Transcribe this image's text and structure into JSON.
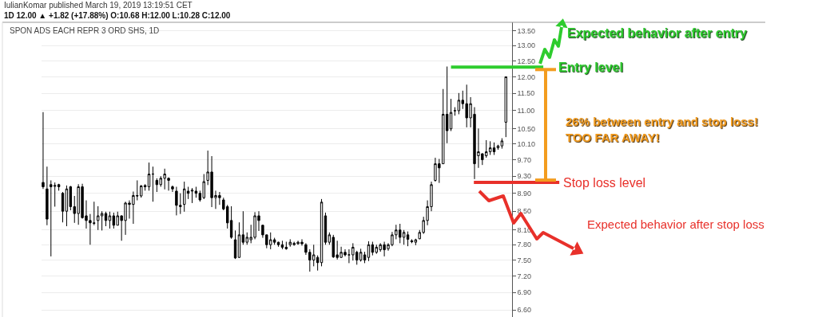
{
  "chart_data": {
    "type": "candlestick",
    "title": "SPON ADS EACH REPR 3 ORD SHS, 1D",
    "annotations": [
      "IulianKomar published March 19, 2019 13:19:51 CET",
      "1D 12.00 ▲ +1.82 (+17.88%) O:10.68 H:12.00 L:10.28 C:12.00",
      "Expected behavior after entry",
      "26% between entry and stop loss!\nTOO FAR AWAY!",
      "Expected behavior after stop loss"
    ],
    "categories": [
      null,
      null,
      null,
      null,
      null,
      null,
      null,
      null,
      null,
      null,
      null,
      null,
      null,
      null,
      null,
      null,
      null,
      null,
      null,
      null,
      null,
      null,
      null,
      null,
      null,
      null,
      null,
      null,
      null,
      null,
      null,
      null,
      null,
      null,
      null,
      null,
      null,
      null,
      null,
      null,
      null,
      null,
      null,
      null,
      null,
      null,
      null,
      null,
      null,
      null,
      null,
      null,
      null,
      null,
      null,
      null,
      null,
      null,
      null,
      null,
      null,
      null,
      null,
      null,
      null,
      null,
      null,
      null,
      null,
      null,
      null,
      null,
      null,
      null,
      null,
      null,
      null,
      null,
      null,
      null,
      null,
      null,
      null,
      null,
      null,
      null,
      null,
      null,
      null,
      null,
      null,
      null,
      null,
      null,
      null,
      null,
      null,
      null,
      null,
      null,
      null,
      null,
      null,
      null,
      null,
      null,
      null,
      null,
      null,
      null,
      null,
      null,
      null,
      null,
      null,
      null,
      null,
      null,
      null
    ],
    "color": "#000000",
    "ohlc": [
      [
        9.15,
        10.96,
        9.0,
        9.05
      ],
      [
        9.0,
        9.53,
        8.2,
        8.33
      ],
      [
        9.1,
        9.2,
        7.57,
        9.05
      ],
      [
        9.06,
        9.15,
        8.6,
        9.08
      ],
      [
        9.1,
        9.12,
        8.96,
        9.05
      ],
      [
        8.9,
        8.93,
        8.26,
        8.5
      ],
      [
        8.5,
        9.08,
        8.18,
        9.0
      ],
      [
        9.05,
        9.07,
        8.52,
        8.6
      ],
      [
        8.6,
        8.84,
        8.25,
        8.45
      ],
      [
        8.45,
        9.11,
        8.21,
        9.05
      ],
      [
        9.05,
        9.12,
        8.34,
        8.36
      ],
      [
        8.4,
        8.74,
        8.13,
        8.3
      ],
      [
        8.3,
        8.44,
        7.8,
        8.25
      ],
      [
        8.25,
        8.71,
        8.2,
        8.24
      ],
      [
        8.3,
        8.61,
        8.1,
        8.4
      ],
      [
        8.4,
        8.5,
        8.09,
        8.45
      ],
      [
        8.45,
        8.49,
        8.18,
        8.3
      ],
      [
        8.3,
        8.49,
        8.13,
        8.4
      ],
      [
        8.4,
        8.47,
        8.13,
        8.2
      ],
      [
        8.2,
        8.49,
        8.2,
        8.4
      ],
      [
        8.4,
        8.41,
        7.88,
        8.3
      ],
      [
        8.3,
        8.71,
        8.0,
        8.68
      ],
      [
        8.68,
        8.74,
        8.34,
        8.65
      ],
      [
        8.65,
        8.94,
        8.23,
        8.85
      ],
      [
        8.85,
        9.2,
        8.74,
        8.84
      ],
      [
        8.84,
        9.09,
        8.8,
        9.07
      ],
      [
        9.08,
        9.11,
        8.96,
        9.05
      ],
      [
        9.05,
        9.63,
        8.96,
        9.35
      ],
      [
        9.35,
        9.53,
        8.71,
        9.35
      ],
      [
        9.2,
        9.25,
        8.93,
        9.1
      ],
      [
        9.1,
        9.3,
        9.05,
        9.25
      ],
      [
        9.25,
        9.48,
        8.99,
        9.35
      ],
      [
        9.25,
        9.27,
        8.96,
        9.2
      ],
      [
        9.05,
        9.08,
        8.93,
        9.0
      ],
      [
        8.95,
        9.05,
        8.41,
        8.63
      ],
      [
        8.6,
        8.9,
        8.44,
        8.63
      ],
      [
        8.65,
        9.17,
        8.49,
        9.0
      ],
      [
        8.95,
        9.05,
        8.77,
        8.9
      ],
      [
        8.95,
        9.02,
        8.68,
        8.97
      ],
      [
        8.95,
        9.05,
        8.8,
        8.9
      ],
      [
        8.9,
        8.96,
        8.71,
        8.75
      ],
      [
        8.8,
        9.35,
        8.77,
        9.17
      ],
      [
        9.2,
        9.93,
        9.09,
        9.4
      ],
      [
        9.4,
        9.79,
        8.59,
        8.8
      ],
      [
        8.8,
        8.96,
        8.55,
        8.85
      ],
      [
        8.85,
        8.93,
        8.64,
        8.8
      ],
      [
        8.75,
        8.8,
        8.52,
        8.55
      ],
      [
        8.6,
        8.64,
        8.13,
        8.25
      ],
      [
        8.3,
        8.61,
        7.92,
        7.95
      ],
      [
        7.9,
        8.09,
        7.52,
        7.54
      ],
      [
        7.55,
        8.26,
        7.54,
        8.0
      ],
      [
        8.0,
        8.5,
        7.8,
        7.85
      ],
      [
        7.85,
        8.05,
        7.8,
        7.95
      ],
      [
        7.9,
        8.21,
        7.83,
        7.95
      ],
      [
        7.95,
        8.48,
        7.91,
        8.4
      ],
      [
        8.4,
        8.5,
        8.08,
        8.3
      ],
      [
        8.2,
        8.21,
        7.94,
        8.0
      ],
      [
        8.0,
        8.0,
        7.73,
        7.8
      ],
      [
        7.8,
        8.05,
        7.71,
        7.9
      ],
      [
        7.9,
        7.94,
        7.8,
        7.85
      ],
      [
        7.85,
        7.86,
        7.76,
        7.8
      ],
      [
        7.8,
        7.88,
        7.71,
        7.75
      ],
      [
        7.75,
        7.86,
        7.7,
        7.72
      ],
      [
        7.8,
        7.91,
        7.76,
        7.85
      ],
      [
        7.8,
        7.86,
        7.78,
        7.83
      ],
      [
        7.82,
        7.88,
        7.8,
        7.85
      ],
      [
        7.85,
        7.91,
        7.78,
        7.82
      ],
      [
        7.8,
        7.83,
        7.6,
        7.65
      ],
      [
        7.65,
        7.71,
        7.28,
        7.5
      ],
      [
        7.5,
        7.8,
        7.38,
        7.6
      ],
      [
        7.55,
        7.59,
        7.3,
        7.45
      ],
      [
        7.45,
        8.77,
        7.38,
        8.7
      ],
      [
        8.4,
        8.47,
        7.8,
        7.85
      ],
      [
        7.85,
        8.05,
        7.8,
        8.0
      ],
      [
        7.95,
        8.0,
        7.54,
        7.56
      ],
      [
        7.6,
        7.88,
        7.51,
        7.55
      ],
      [
        7.55,
        7.76,
        7.54,
        7.65
      ],
      [
        7.65,
        7.71,
        7.57,
        7.6
      ],
      [
        7.6,
        7.71,
        7.44,
        7.6
      ],
      [
        7.6,
        7.83,
        7.49,
        7.75
      ],
      [
        7.65,
        7.68,
        7.41,
        7.5
      ],
      [
        7.5,
        7.72,
        7.47,
        7.65
      ],
      [
        7.6,
        7.66,
        7.44,
        7.5
      ],
      [
        7.55,
        7.87,
        7.48,
        7.8
      ],
      [
        7.8,
        7.86,
        7.59,
        7.65
      ],
      [
        7.65,
        7.8,
        7.62,
        7.75
      ],
      [
        7.7,
        7.83,
        7.66,
        7.8
      ],
      [
        7.8,
        7.86,
        7.57,
        7.7
      ],
      [
        7.72,
        7.83,
        7.68,
        7.8
      ],
      [
        7.8,
        8.06,
        7.77,
        8.0
      ],
      [
        8.0,
        8.21,
        7.91,
        8.1
      ],
      [
        8.1,
        8.23,
        7.83,
        7.95
      ],
      [
        7.95,
        8.1,
        7.8,
        8.05
      ],
      [
        8.0,
        8.07,
        7.77,
        7.91
      ],
      [
        7.88,
        7.91,
        7.83,
        7.86
      ],
      [
        7.85,
        7.92,
        7.79,
        7.9
      ],
      [
        7.92,
        8.1,
        7.91,
        8.05
      ],
      [
        8.05,
        8.38,
        8.02,
        8.3
      ],
      [
        8.3,
        8.74,
        8.2,
        8.6
      ],
      [
        8.6,
        9.17,
        8.5,
        9.1
      ],
      [
        9.2,
        9.75,
        9.17,
        9.6
      ],
      [
        9.6,
        9.72,
        9.14,
        9.5
      ],
      [
        9.6,
        11.63,
        9.6,
        10.9
      ],
      [
        10.9,
        12.32,
        10.12,
        10.45
      ],
      [
        10.5,
        11.34,
        10.44,
        10.95
      ],
      [
        11.0,
        11.1,
        10.86,
        11.0
      ],
      [
        11.0,
        11.51,
        10.9,
        11.3
      ],
      [
        11.3,
        11.58,
        11.05,
        11.2
      ],
      [
        11.2,
        11.76,
        10.54,
        10.8
      ],
      [
        10.8,
        11.39,
        10.54,
        11.2
      ],
      [
        10.9,
        11.1,
        9.23,
        9.6
      ],
      [
        9.8,
        10.51,
        9.5,
        9.9
      ],
      [
        9.85,
        9.86,
        9.57,
        9.7
      ],
      [
        9.8,
        10.2,
        9.75,
        9.9
      ],
      [
        9.9,
        10.17,
        9.82,
        10.0
      ],
      [
        10.0,
        10.14,
        9.82,
        9.9
      ],
      [
        10.0,
        10.08,
        9.95,
        10.05
      ],
      [
        10.05,
        10.25,
        9.98,
        10.18
      ],
      [
        10.68,
        12.0,
        10.28,
        12.0
      ]
    ],
    "ylim": [
      6.48,
      13.8
    ],
    "yticks": [
      {
        "value": 6.6,
        "label": "6.60"
      },
      {
        "value": 6.9,
        "label": "6.90"
      },
      {
        "value": 7.2,
        "label": "7.20"
      },
      {
        "value": 7.5,
        "label": "7.50"
      },
      {
        "value": 7.8,
        "label": "7.80"
      },
      {
        "value": 8.1,
        "label": "8.10"
      },
      {
        "value": 8.5,
        "label": "8.50"
      },
      {
        "value": 8.9,
        "label": "8.90"
      },
      {
        "value": 9.3,
        "label": "9.30"
      },
      {
        "value": 9.7,
        "label": "9.70"
      },
      {
        "value": 10.1,
        "label": "10.10"
      },
      {
        "value": 10.5,
        "label": "10.50"
      },
      {
        "value": 11,
        "label": "11.00"
      },
      {
        "value": 11.5,
        "label": "11.50"
      },
      {
        "value": 12,
        "label": "12.00"
      },
      {
        "value": 12.5,
        "label": "12.50"
      },
      {
        "value": 13,
        "label": "13.00"
      },
      {
        "value": 13.5,
        "label": "13.50"
      }
    ],
    "ref_lines": [
      {
        "axis": "y",
        "value": 12.3,
        "label": "Entry level",
        "color": "#2ecc2e"
      },
      {
        "axis": "y",
        "value": 9.15,
        "label": "Stop loss level",
        "color": "#e8302a"
      }
    ],
    "log": "y",
    "grid": "y",
    "tick_labels": "y"
  }
}
